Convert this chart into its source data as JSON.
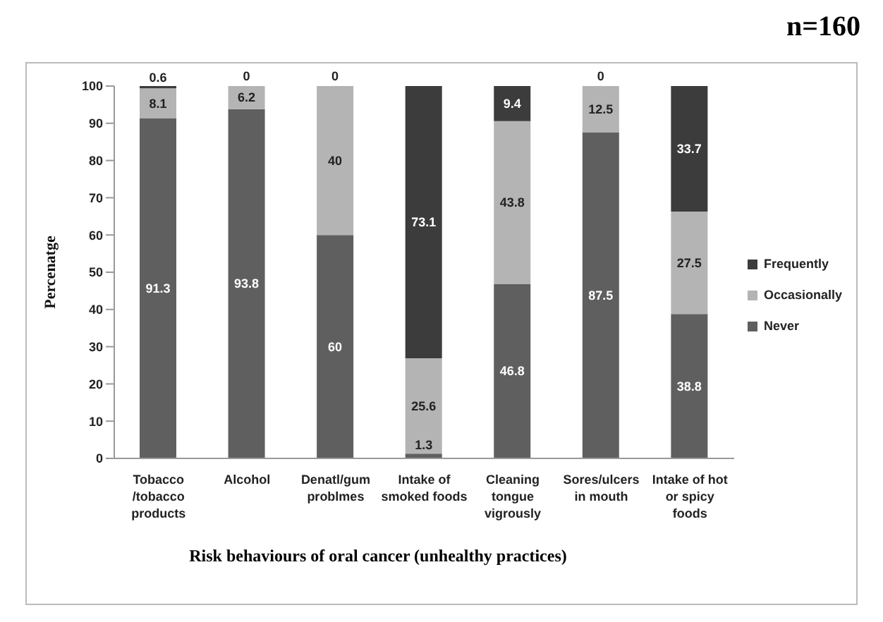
{
  "chart_data": {
    "type": "bar",
    "title": "n=160",
    "xlabel": "Risk behaviours of oral cancer (unhealthy practices)",
    "ylabel": "Percenatge",
    "categories": [
      "Tobacco /tobacco products",
      "Alcohol",
      "Denatl/gum problmes",
      "Intake of smoked foods",
      "Cleaning tongue vigrously",
      "Sores/ulcers in mouth",
      "Intake of hot or spicy foods"
    ],
    "series": [
      {
        "name": "Never",
        "color": "#5f5f5f",
        "values": [
          91.3,
          93.8,
          60,
          1.3,
          46.8,
          87.5,
          38.8
        ]
      },
      {
        "name": "Occasionally",
        "color": "#b4b4b4",
        "values": [
          8.1,
          6.2,
          40,
          25.6,
          43.8,
          12.5,
          27.5
        ]
      },
      {
        "name": "Frequently",
        "color": "#3c3c3c",
        "values": [
          0.6,
          0,
          0,
          73.1,
          9.4,
          0,
          33.7
        ]
      }
    ],
    "stacked": true,
    "ylim": [
      0,
      100
    ],
    "yticks": [
      0,
      10,
      20,
      30,
      40,
      50,
      60,
      70,
      80,
      90,
      100
    ],
    "grid": false,
    "legend": "right",
    "data_labels": true
  }
}
